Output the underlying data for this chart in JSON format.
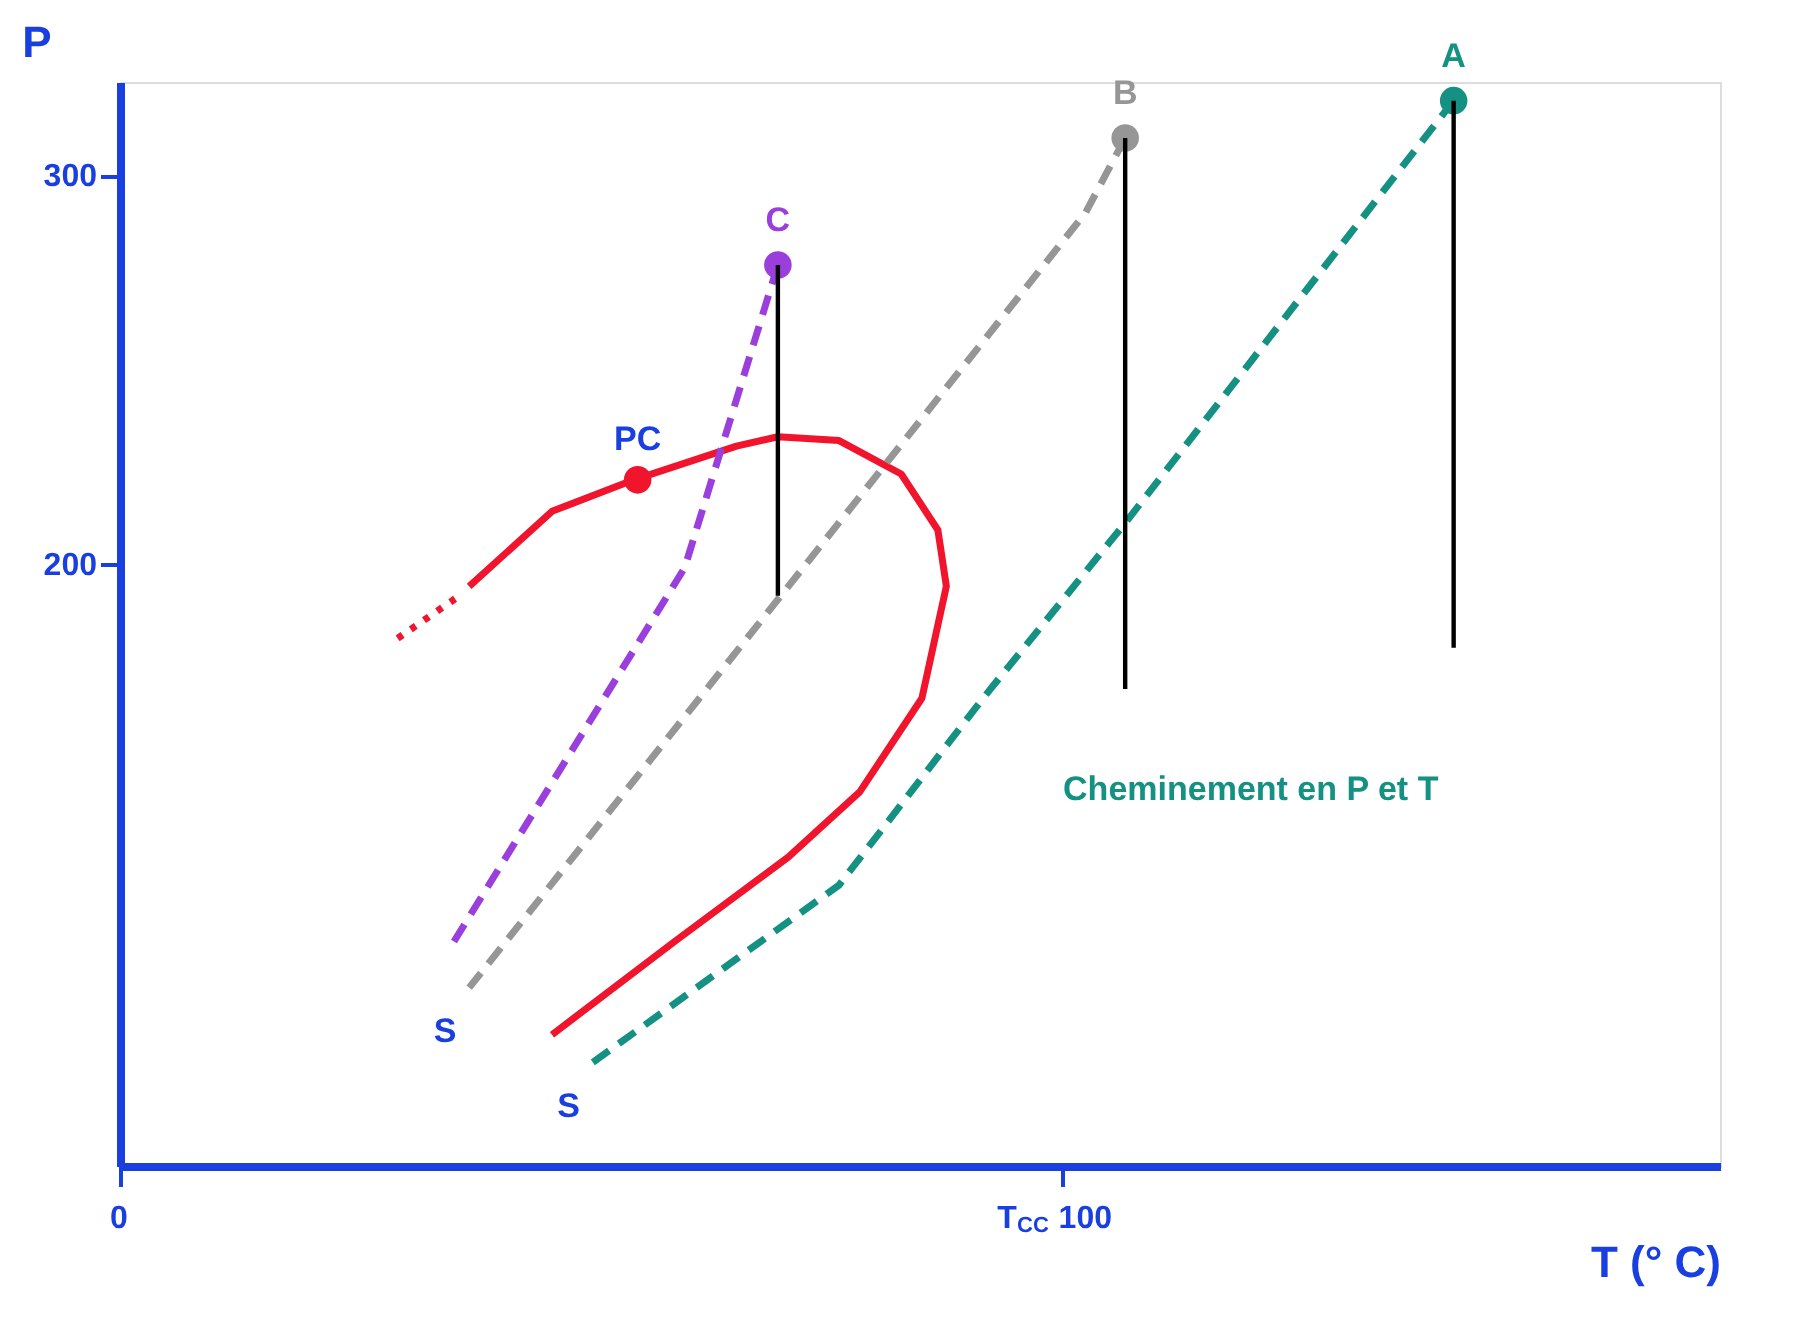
{
  "chart_data": {
    "type": "line",
    "xlabel": "T (° C)",
    "ylabel": "P",
    "xlim": [
      0,
      170
    ],
    "ylim": [
      45,
      324
    ],
    "xticks": [
      0,
      {
        "value": 100,
        "label": "T$_{CC}$ 100"
      }
    ],
    "yticks": [
      200,
      300
    ],
    "grid": false,
    "series": [
      {
        "color": "#f0142d",
        "line_style": "solid",
        "x": [
          37.1,
          45.9,
          54.6,
          65.5,
          69.9,
          76.4,
          83.0,
          86.9,
          87.8,
          85.2,
          78.6,
          71.0,
          59.0,
          45.9
        ],
        "values": [
          194.2,
          213.5,
          221.6,
          230.3,
          232.7,
          231.7,
          223.1,
          208.7,
          194.2,
          165.4,
          141.3,
          124.5,
          102.9,
          78.8
        ]
      },
      {
        "color": "#f0142d",
        "line_style": "dotted",
        "x": [
          29.5,
          35.6
        ],
        "values": [
          180.8,
          191.0
        ]
      },
      {
        "name": "Cheminement en P et T",
        "color": "#149182",
        "line_style": "dashed",
        "x": [
          141.7,
          107.0,
          91.7,
          76.4,
          50.2
        ],
        "values": [
          319.2,
          211.1,
          165.4,
          117.3,
          71.6
        ]
      },
      {
        "color": "#969696",
        "line_style": "dashed",
        "x": [
          106.8,
          102.6,
          37.1
        ],
        "values": [
          309.6,
          290.4,
          90.9
        ]
      },
      {
        "color": "#9b3fdc",
        "line_style": "dashed",
        "x": [
          69.9,
          60.0,
          34.9
        ],
        "values": [
          276.9,
          199.0,
          100.5
        ]
      },
      {
        "color": "#000000",
        "line_style": "solid",
        "x": [
          69.9,
          69.9
        ],
        "values": [
          276.9,
          191.8
        ]
      },
      {
        "color": "#000000",
        "line_style": "solid",
        "x": [
          106.8,
          106.8
        ],
        "values": [
          309.6,
          167.8
        ]
      },
      {
        "color": "#000000",
        "line_style": "solid",
        "x": [
          141.7,
          141.7
        ],
        "values": [
          319.2,
          178.4
        ]
      },
      {
        "type": "scatter",
        "marker": "circle",
        "name": "A",
        "color": "#149182",
        "x": [
          141.7
        ],
        "values": [
          319.2
        ]
      },
      {
        "type": "scatter",
        "marker": "circle",
        "name": "B",
        "color": "#969696",
        "x": [
          106.8
        ],
        "values": [
          309.6
        ]
      },
      {
        "type": "scatter",
        "marker": "circle",
        "name": "C",
        "color": "#9b3fdc",
        "x": [
          69.9
        ],
        "values": [
          276.9
        ]
      },
      {
        "type": "scatter",
        "marker": "circle",
        "color": "#f0142d",
        "x": [
          55.0
        ],
        "values": [
          221.6
        ]
      }
    ],
    "annotations": [
      {
        "text": "PC",
        "x": 55.0,
        "y": 221.6
      },
      {
        "text": "S",
        "x": 37.1,
        "y": 90.9
      },
      {
        "text": "S",
        "x": 50.2,
        "y": 71.6
      }
    ]
  }
}
